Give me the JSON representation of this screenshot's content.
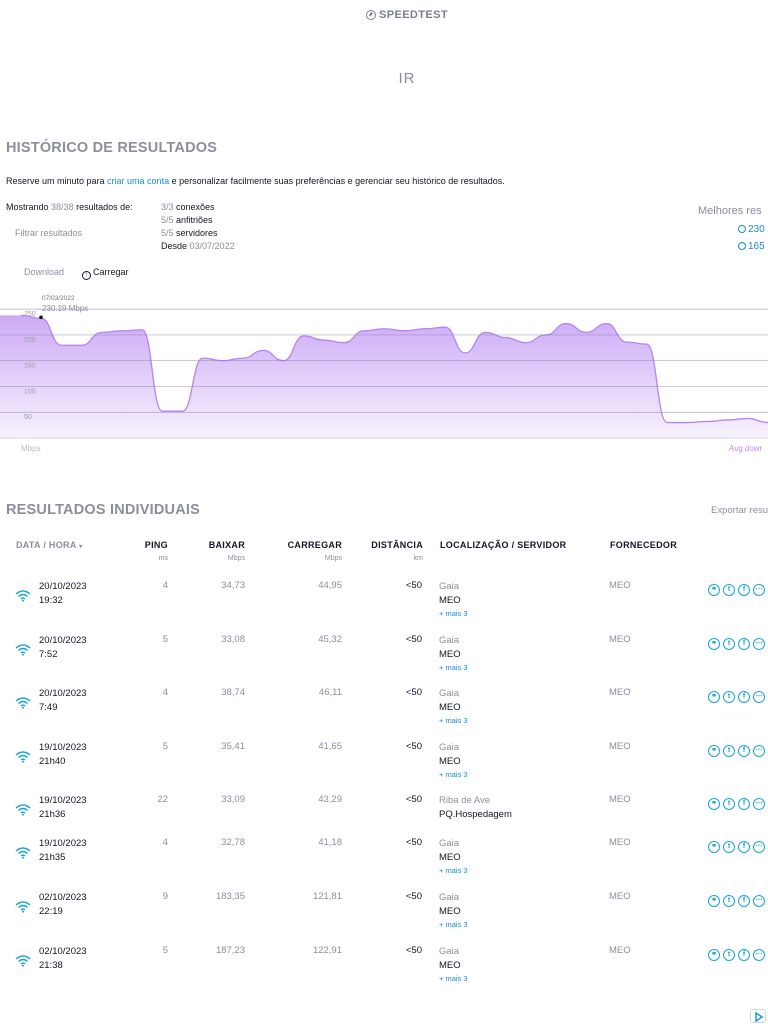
{
  "header": {
    "logo_text": "SPEEDTEST",
    "logo_icon": "speedometer-icon",
    "nav_item": "IR"
  },
  "history": {
    "title": "HISTÓRICO DE RESULTADOS",
    "intro_before": "Reserve um minuto para ",
    "intro_link": "criar uma conta",
    "intro_after": " e personalizar facilmente suas preferências e gerenciar seu histórico de resultados.",
    "showing_label": "Mostrando",
    "showing_count": "38/38",
    "showing_suffix": "resultados de:",
    "filter_label": "Filtrar resultados",
    "stats": [
      {
        "count": "3/3",
        "label": "conexões"
      },
      {
        "count": "5/5",
        "label": "anfitriões"
      },
      {
        "count": "5/5",
        "label": "servidores"
      },
      {
        "count": "Desde",
        "label": "03/07/2022"
      }
    ],
    "best_label": "Melhores res",
    "best_download": "230",
    "best_upload": "165"
  },
  "chart_tabs": {
    "download": "Download",
    "upload": "Carregar",
    "upload_icon": "upload-icon"
  },
  "chart_data": {
    "type": "area",
    "series": [
      {
        "values": [
          238,
          232,
          180,
          180,
          205,
          208,
          210,
          52,
          52,
          155,
          150,
          155,
          170,
          150,
          198,
          190,
          185,
          208,
          212,
          208,
          212,
          215,
          165,
          205,
          195,
          185,
          200,
          222,
          205,
          222,
          186,
          182,
          30,
          30,
          32,
          35,
          38,
          30
        ]
      }
    ],
    "ylim": [
      0,
      260
    ],
    "yticks": [
      "250",
      "200",
      "150",
      "100",
      "50"
    ],
    "ytick_values": [
      250,
      200,
      150,
      100,
      50
    ],
    "ylabel": "Mbps",
    "tooltip_date": "07/03/2022",
    "tooltip_value": "230.19 Mbps",
    "legend": "Avg dowr",
    "fill_color": "#c9a6f5",
    "line_color": "#b883f0",
    "grid": true
  },
  "results": {
    "title": "RESULTADOS INDIVIDUAIS",
    "export_label": "Exportar resu",
    "columns": {
      "date": "DATA / HORA",
      "ping": "PING",
      "ping_unit": "ms",
      "download": "BAIXAR",
      "download_unit": "Mbps",
      "upload": "CARREGAR",
      "upload_unit": "Mbps",
      "distance": "DISTÂNCIA",
      "distance_unit": "km",
      "location": "LOCALIZAÇÃO / SERVIDOR",
      "provider": "FORNECEDOR"
    },
    "rows": [
      {
        "date": "20/10/2023",
        "time": "19:32",
        "ping": "4",
        "down": "34,73",
        "up": "44,95",
        "dist": "<50",
        "city": "Gaia",
        "isp": "MEO",
        "more": "+ mais 3",
        "provider": "MEO"
      },
      {
        "date": "20/10/2023",
        "time": "7:52",
        "ping": "5",
        "down": "33,08",
        "up": "45,32",
        "dist": "<50",
        "city": "Gaia",
        "isp": "MEO",
        "more": "+ mais 3",
        "provider": "MEO"
      },
      {
        "date": "20/10/2023",
        "time": "7:49",
        "ping": "4",
        "down": "38,74",
        "up": "46,11",
        "dist": "<50",
        "city": "Gaia",
        "isp": "MEO",
        "more": "+ mais 3",
        "provider": "MEO"
      },
      {
        "date": "19/10/2023",
        "time": "21h40",
        "ping": "5",
        "down": "35,41",
        "up": "41,65",
        "dist": "<50",
        "city": "Gaia",
        "isp": "MEO",
        "more": "+ mais 3",
        "provider": "MEO"
      },
      {
        "date": "19/10/2023",
        "time": "21h36",
        "ping": "22",
        "down": "33,09",
        "up": "43,29",
        "dist": "<50",
        "city": "Riba de Ave",
        "isp": "PQ.Hospedagem",
        "more": "",
        "provider": "MEO"
      },
      {
        "date": "19/10/2023",
        "time": "21h35",
        "ping": "4",
        "down": "32,78",
        "up": "41,18",
        "dist": "<50",
        "city": "Gaia",
        "isp": "MEO",
        "more": "+ mais 3",
        "provider": "MEO"
      },
      {
        "date": "02/10/2023",
        "time": "22:19",
        "ping": "9",
        "down": "183,35",
        "up": "121,81",
        "dist": "<50",
        "city": "Gaia",
        "isp": "MEO",
        "more": "+ mais 3",
        "provider": "MEO"
      },
      {
        "date": "02/10/2023",
        "time": "21:38",
        "ping": "5",
        "down": "187,23",
        "up": "122,91",
        "dist": "<50",
        "city": "Gaia",
        "isp": "MEO",
        "more": "+ mais 3",
        "provider": "MEO"
      }
    ],
    "share_icons": [
      "link-icon",
      "twitter-icon",
      "facebook-icon",
      "more-icon"
    ]
  }
}
